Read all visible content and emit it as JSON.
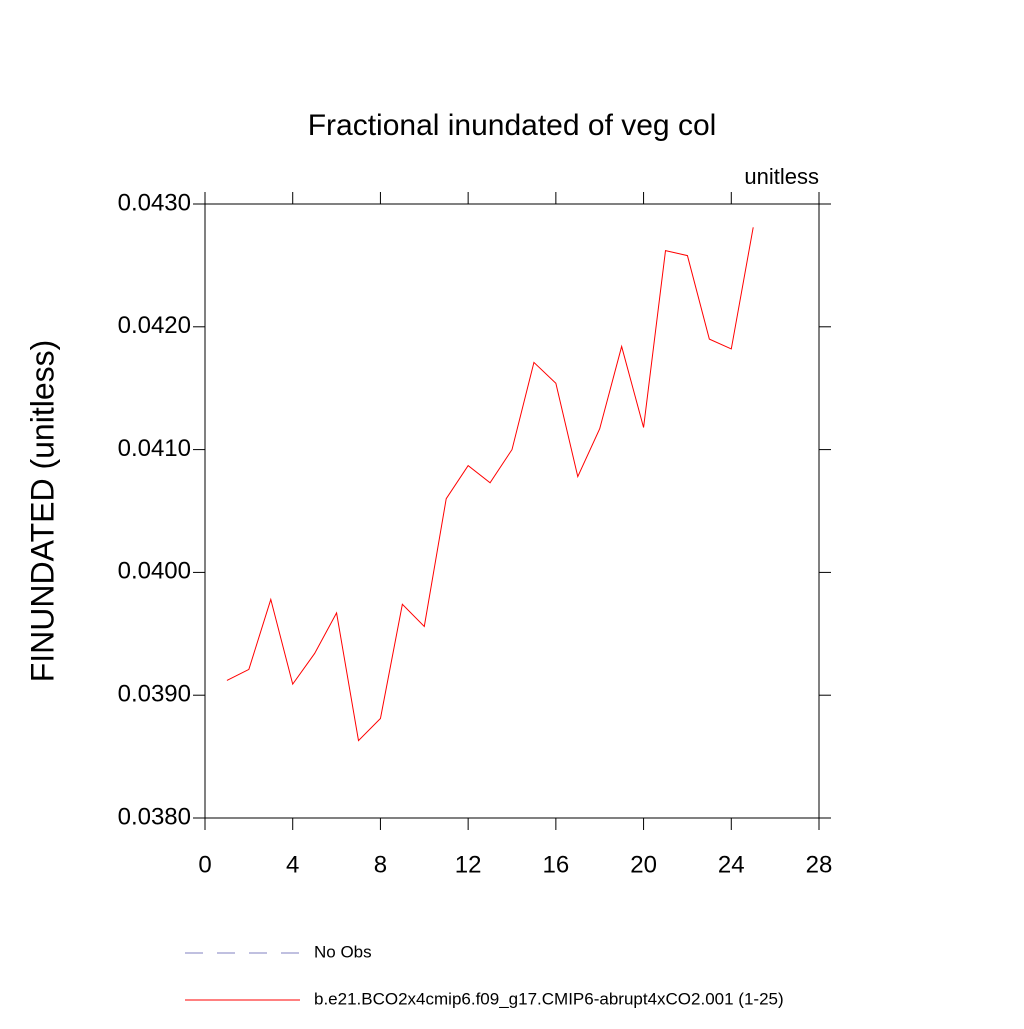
{
  "chart_data": {
    "type": "line",
    "title": "Fractional inundated of veg col",
    "subtitle": "unitless",
    "y_label": "FINUNDATED  (unitless)",
    "x": [
      1,
      2,
      3,
      4,
      5,
      6,
      7,
      8,
      9,
      10,
      11,
      12,
      13,
      14,
      15,
      16,
      17,
      18,
      19,
      20,
      21,
      22,
      23,
      24,
      25
    ],
    "series": [
      {
        "name": "No Obs",
        "color": "#8080c0",
        "dashed": true,
        "values": [
          null,
          null,
          null,
          null,
          null,
          null,
          null,
          null,
          null,
          null,
          null,
          null,
          null,
          null,
          null,
          null,
          null,
          null,
          null,
          null,
          null,
          null,
          null,
          null,
          null
        ]
      },
      {
        "name": "b.e21.BCO2x4cmip6.f09_g17.CMIP6-abrupt4xCO2.001 (1-25)",
        "color": "#ff0000",
        "dashed": false,
        "values": [
          0.03912,
          0.03921,
          0.03978,
          0.03909,
          0.03934,
          0.03967,
          0.03863,
          0.03881,
          0.03974,
          0.03956,
          0.0406,
          0.04087,
          0.04073,
          0.041,
          0.04171,
          0.04154,
          0.04078,
          0.04117,
          0.04184,
          0.04118,
          0.04262,
          0.04258,
          0.0419,
          0.04182,
          0.04281
        ]
      }
    ],
    "xlim": [
      0,
      28
    ],
    "xticks": [
      0,
      4,
      8,
      12,
      16,
      20,
      24,
      28
    ],
    "ylim": [
      0.038,
      0.043
    ],
    "yticks": [
      {
        "value": 0.038,
        "label": "0.0380"
      },
      {
        "value": 0.039,
        "label": "0.0390"
      },
      {
        "value": 0.04,
        "label": "0.0400"
      },
      {
        "value": 0.041,
        "label": "0.0410"
      },
      {
        "value": 0.042,
        "label": "0.0420"
      },
      {
        "value": 0.043,
        "label": "0.0430"
      }
    ],
    "grid": false
  }
}
